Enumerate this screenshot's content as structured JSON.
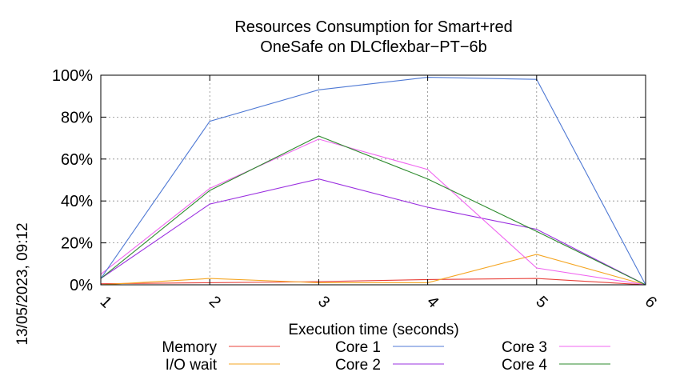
{
  "chart_data": {
    "type": "line",
    "title_lines": [
      "Resources Consumption for Smart+red",
      "OneSafe on DLCflexbar−PT−6b"
    ],
    "xlabel": "Execution time (seconds)",
    "ylabel": "",
    "x": [
      1,
      2,
      3,
      4,
      5,
      6
    ],
    "x_tick_labels": [
      "1",
      "2",
      "3",
      "4",
      "5",
      "6"
    ],
    "xlim": [
      1,
      6
    ],
    "ylim": [
      0,
      100
    ],
    "y_ticks": [
      0,
      20,
      40,
      60,
      80,
      100
    ],
    "y_tick_labels": [
      "0%",
      "20%",
      "40%",
      "60%",
      "80%",
      "100%"
    ],
    "grid": true,
    "legend_position": "bottom",
    "series": [
      {
        "name": "Memory",
        "color": "#e8413a",
        "values": [
          0.5,
          1,
          1.5,
          2.5,
          3,
          0
        ]
      },
      {
        "name": "I/O wait",
        "color": "#f5a623",
        "values": [
          0,
          3,
          1,
          1,
          14.5,
          0
        ]
      },
      {
        "name": "Core 1",
        "color": "#4f79d4",
        "values": [
          3,
          78,
          93,
          99,
          98,
          0
        ]
      },
      {
        "name": "Core 2",
        "color": "#9b30e0",
        "values": [
          3,
          38.5,
          50.5,
          37,
          26.5,
          0
        ]
      },
      {
        "name": "Core 3",
        "color": "#f066f0",
        "values": [
          5,
          46,
          69.5,
          55,
          8,
          0
        ]
      },
      {
        "name": "Core 4",
        "color": "#2e8b2e",
        "values": [
          3,
          45,
          71,
          50.5,
          25.5,
          0
        ]
      }
    ]
  },
  "timestamp": "13/05/2023, 09:12"
}
